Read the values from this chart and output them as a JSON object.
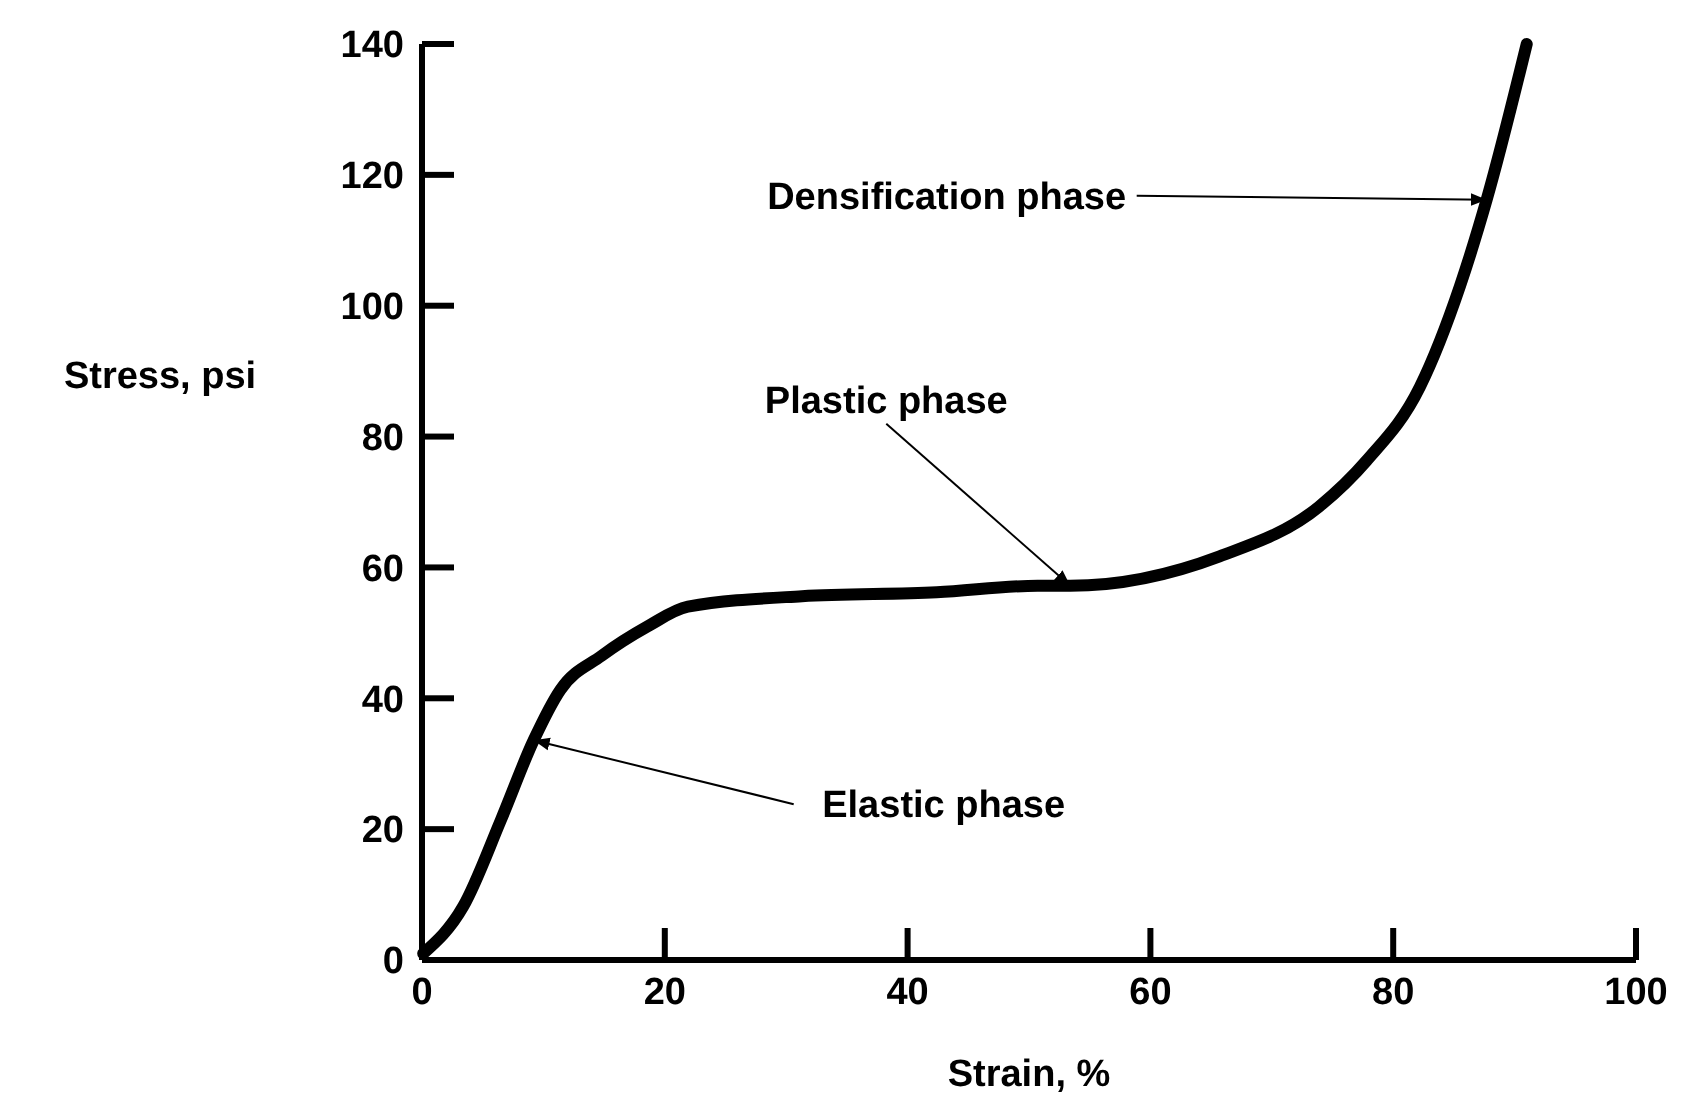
{
  "chart_data": {
    "type": "line",
    "xlabel": "Strain, %",
    "ylabel": "Stress, psi",
    "xlim": [
      0,
      100
    ],
    "ylim": [
      0,
      140
    ],
    "xticks": [
      0,
      20,
      40,
      60,
      80,
      100
    ],
    "yticks": [
      0,
      20,
      40,
      60,
      80,
      100,
      120,
      140
    ],
    "grid": false,
    "marker": "none",
    "line_style": "solid",
    "series": [
      {
        "color": "#000000",
        "x": [
          0.1,
          3.4,
          6.5,
          9.2,
          11.4,
          14.8,
          18.6,
          21.9,
          31.3,
          42.4,
          50.7,
          53.4,
          65.7,
          73.9,
          77.8,
          82.2,
          85.5,
          87.7,
          91
        ],
        "values": [
          1,
          8.2,
          21.4,
          33.6,
          41.3,
          46.5,
          51,
          54,
          55.6,
          56.2,
          57.2,
          57.2,
          61.7,
          69.3,
          76.3,
          87.6,
          103,
          116.2,
          140
        ]
      }
    ],
    "annotations": [
      {
        "text": "Densification phase",
        "x": 87.7,
        "y": 116.2
      },
      {
        "text": "Plastic phase",
        "x": 53.4,
        "y": 57.2
      },
      {
        "text": "Elastic phase",
        "x": 9.2,
        "y": 33.6
      }
    ]
  }
}
